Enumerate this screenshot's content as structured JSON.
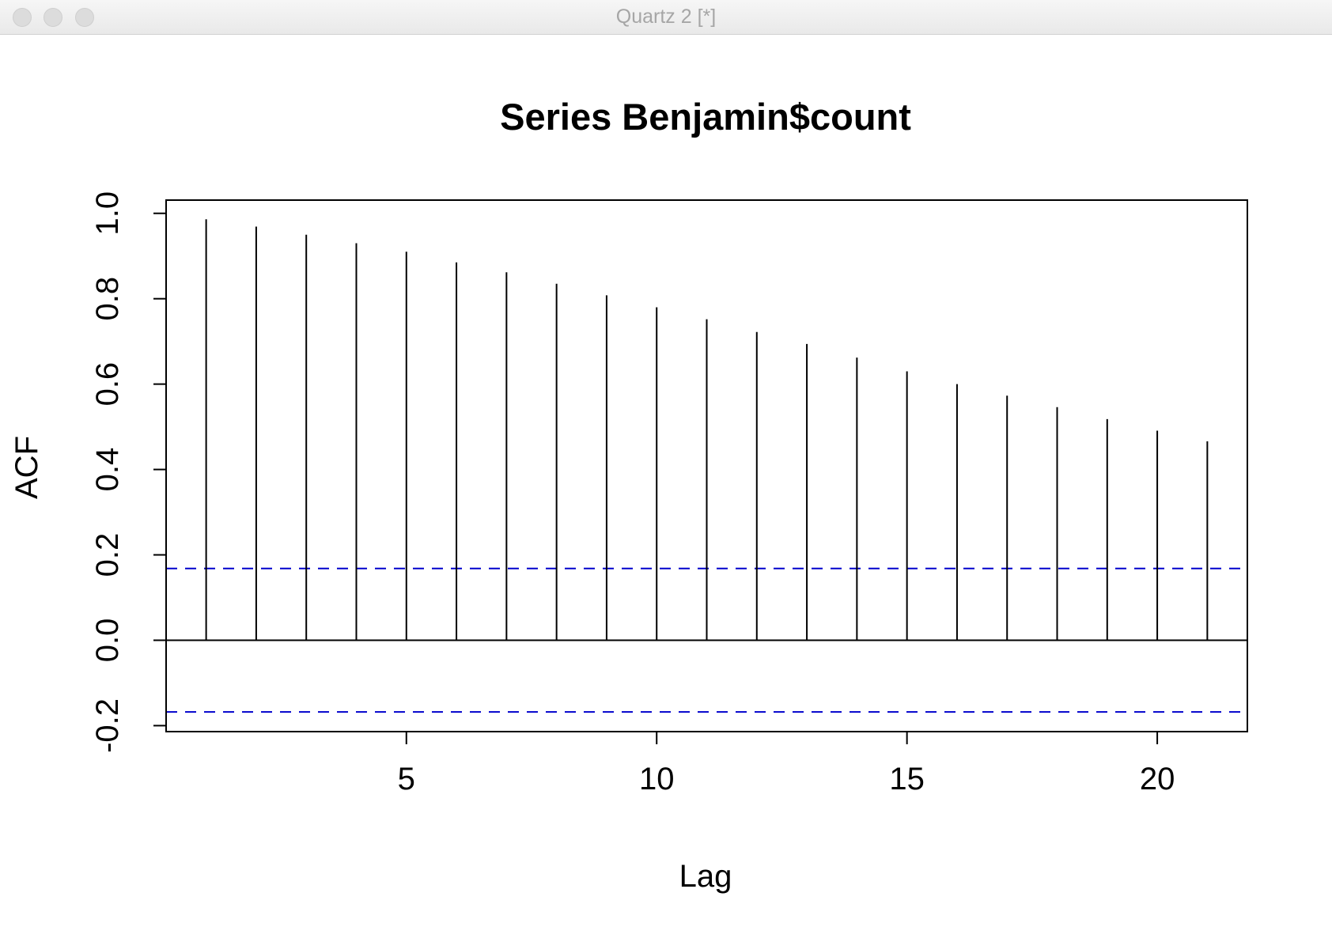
{
  "window": {
    "title": "Quartz 2 [*]",
    "buttons": [
      "close",
      "minimize",
      "zoom"
    ]
  },
  "chart_data": {
    "type": "bar",
    "subtype": "acf-stem",
    "title": "Series Benjamin$count",
    "xlabel": "Lag",
    "ylabel": "ACF",
    "x": [
      1,
      2,
      3,
      4,
      5,
      6,
      7,
      8,
      9,
      10,
      11,
      12,
      13,
      14,
      15,
      16,
      17,
      18,
      19,
      20,
      21
    ],
    "values": [
      0.986,
      0.969,
      0.95,
      0.93,
      0.91,
      0.885,
      0.862,
      0.835,
      0.808,
      0.78,
      0.752,
      0.722,
      0.694,
      0.662,
      0.63,
      0.6,
      0.573,
      0.546,
      0.518,
      0.491,
      0.466
    ],
    "xlim": [
      0.2,
      21.8
    ],
    "ylim": [
      -0.214,
      1.031
    ],
    "xticks": [
      5,
      10,
      15,
      20
    ],
    "yticks": [
      -0.2,
      0.0,
      0.2,
      0.4,
      0.6,
      0.8,
      1.0
    ],
    "ytick_labels": [
      "-0.2",
      "0.0",
      "0.2",
      "0.4",
      "0.6",
      "0.8",
      "1.0"
    ],
    "confidence_bounds": [
      0.168,
      -0.168
    ],
    "confidence_color": "#0000cc",
    "grid": false
  }
}
